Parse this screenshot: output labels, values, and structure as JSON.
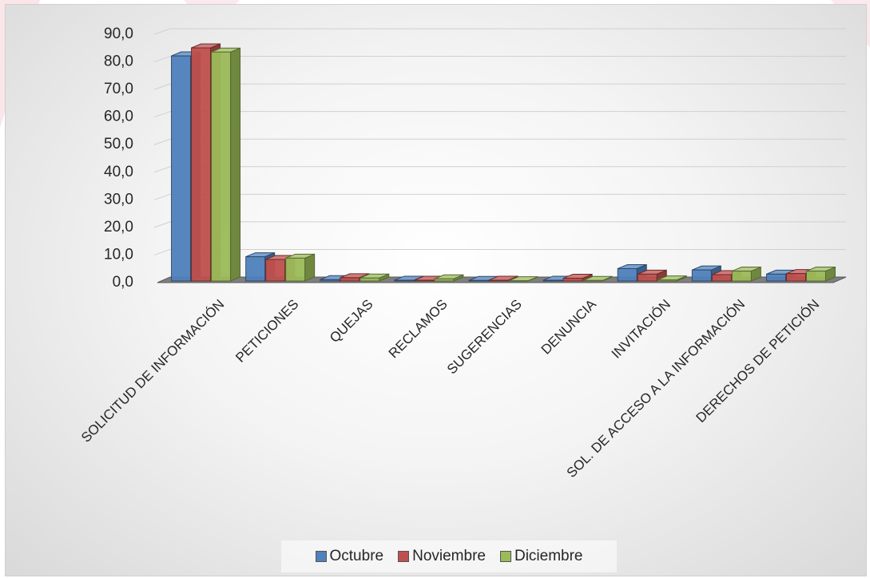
{
  "chart_data": {
    "type": "bar",
    "title": "",
    "xlabel": "",
    "ylabel": "",
    "ylim": [
      0,
      90
    ],
    "y_ticks": [
      "0,0",
      "10,0",
      "20,0",
      "30,0",
      "40,0",
      "50,0",
      "60,0",
      "70,0",
      "80,0",
      "90,0"
    ],
    "grid": true,
    "legend_position": "bottom",
    "style": "3d-clustered-column",
    "categories": [
      "SOLICITUD DE INFORMACIÓN",
      "PETICIONES",
      "QUEJAS",
      "RECLAMOS",
      "SUGERENCIAS",
      "DENUNCIA",
      "INVITACIÓN",
      "SOL. DE ACCESO A LA INFORMACIÓN",
      "DERECHOS DE PETICIÓN"
    ],
    "series": [
      {
        "name": "Octubre",
        "color": "#4f81bd",
        "values": [
          81.6,
          8.8,
          0.5,
          0.3,
          0.2,
          0.3,
          4.5,
          4.0,
          2.5
        ]
      },
      {
        "name": "Noviembre",
        "color": "#c0504d",
        "values": [
          84.5,
          7.8,
          1.2,
          0.3,
          0.3,
          1.0,
          2.5,
          2.3,
          2.7
        ]
      },
      {
        "name": "Diciembre",
        "color": "#9bbb59",
        "values": [
          83.0,
          8.3,
          1.1,
          0.8,
          0.1,
          0.2,
          0.4,
          3.6,
          3.6
        ]
      }
    ]
  }
}
